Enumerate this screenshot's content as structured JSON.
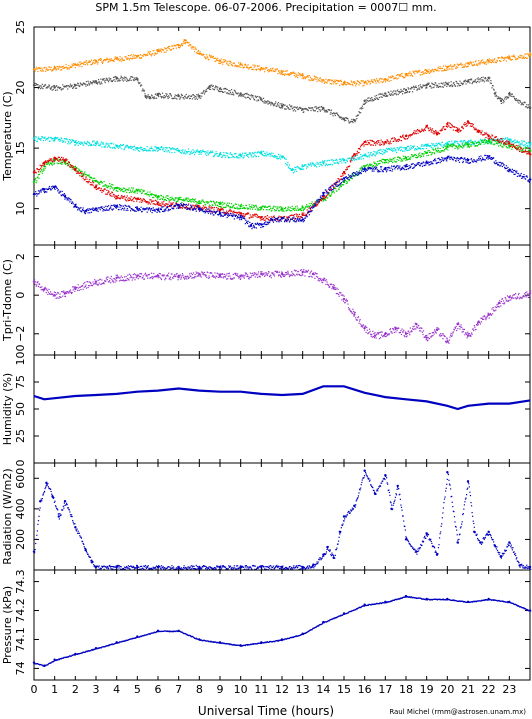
{
  "title": "SPM 1.5m Telescope. 06-07-2006. Precipitation = 0007☐ mm.",
  "xlabel": "Universal Time (hours)",
  "credit": "Raul Michel (rmm@astrosen.unam.mx)",
  "x_tick_labels": [
    "0",
    "1",
    "2",
    "3",
    "4",
    "5",
    "6",
    "7",
    "8",
    "9",
    "10",
    "11",
    "12",
    "13",
    "14",
    "15",
    "16",
    "17",
    "18",
    "19",
    "20",
    "21",
    "22",
    "23"
  ],
  "chart_data": [
    {
      "type": "scatter",
      "ylabel": "Temperature (C)",
      "xlim": [
        0,
        24
      ],
      "ylim": [
        7,
        25
      ],
      "yticks": [
        10,
        15,
        20,
        25
      ],
      "series": [
        {
          "color": "#ff8c00",
          "x": [
            0,
            1,
            2,
            3,
            4,
            5,
            6,
            7,
            7.3,
            8,
            9,
            10,
            11,
            12,
            13,
            14,
            15,
            16,
            17,
            18,
            19,
            20,
            21,
            22,
            23,
            24
          ],
          "y": [
            21.5,
            21.6,
            21.9,
            22.2,
            22.4,
            22.6,
            23.0,
            23.5,
            23.9,
            22.8,
            22.2,
            21.9,
            21.6,
            21.3,
            21.0,
            20.6,
            20.4,
            20.4,
            20.7,
            21.1,
            21.4,
            21.7,
            22.0,
            22.2,
            22.5,
            22.7
          ]
        },
        {
          "color": "#555555",
          "x": [
            0,
            1,
            2,
            3,
            4,
            5,
            5.4,
            5.6,
            6,
            7,
            8,
            8.5,
            9,
            10,
            11,
            12,
            13,
            14,
            15,
            15.5,
            16,
            17,
            18,
            19,
            20,
            21,
            22,
            22.3,
            22.6,
            23,
            24
          ],
          "y": [
            20.2,
            20.0,
            20.2,
            20.5,
            20.8,
            20.7,
            19.3,
            19.2,
            19.4,
            19.3,
            19.3,
            20.1,
            19.9,
            19.5,
            19.0,
            18.5,
            18.2,
            18.3,
            17.4,
            17.3,
            18.9,
            19.5,
            19.8,
            20.2,
            20.3,
            20.5,
            20.8,
            19.5,
            18.9,
            19.5,
            18.3
          ]
        },
        {
          "color": "#00e0e0",
          "x": [
            0,
            1,
            2,
            3,
            4,
            5,
            6,
            7,
            8,
            9,
            10,
            11,
            12,
            12.5,
            13,
            14,
            15,
            16,
            17,
            18,
            19,
            20,
            21,
            22,
            23,
            24
          ],
          "y": [
            15.8,
            15.8,
            15.5,
            15.4,
            15.2,
            15.0,
            15.0,
            14.8,
            14.7,
            14.5,
            14.4,
            14.6,
            14.3,
            13.2,
            13.5,
            13.8,
            14.0,
            14.4,
            14.8,
            15.0,
            15.2,
            15.4,
            15.5,
            15.6,
            15.7,
            15.3
          ]
        },
        {
          "color": "#00d000",
          "x": [
            0,
            0.5,
            1,
            1.5,
            2,
            3,
            4,
            5,
            6,
            7,
            8,
            9,
            10,
            11,
            12,
            13,
            14,
            15,
            16,
            17,
            18,
            19,
            20,
            21,
            22,
            23,
            24
          ],
          "y": [
            12.2,
            13.5,
            14.0,
            13.8,
            13.3,
            12.3,
            11.7,
            11.5,
            11.0,
            10.8,
            10.6,
            10.4,
            10.2,
            10.1,
            10.0,
            10.1,
            10.8,
            12.2,
            13.5,
            14.0,
            14.2,
            14.6,
            15.1,
            15.3,
            15.6,
            15.2,
            14.8
          ]
        },
        {
          "color": "#e00000",
          "x": [
            0,
            0.5,
            1,
            1.5,
            2,
            3,
            4,
            5,
            6,
            7,
            8,
            9,
            10,
            11,
            12,
            13,
            14,
            15,
            15.5,
            16,
            17,
            18,
            19,
            19.5,
            20,
            20.5,
            21,
            21.5,
            22,
            23,
            24
          ],
          "y": [
            13.0,
            13.8,
            14.2,
            14.0,
            13.2,
            11.8,
            11.0,
            10.8,
            10.5,
            10.3,
            10.1,
            9.9,
            9.6,
            9.3,
            9.2,
            9.5,
            11.0,
            13.0,
            14.5,
            15.5,
            15.5,
            16.0,
            16.8,
            16.2,
            17.0,
            16.5,
            17.2,
            16.4,
            16.0,
            15.4,
            14.5
          ]
        },
        {
          "color": "#0000c0",
          "x": [
            0,
            0.5,
            1,
            1.5,
            2,
            2.5,
            3,
            4,
            5,
            6,
            7,
            8,
            9,
            10,
            10.5,
            11,
            11.5,
            12,
            13,
            14,
            15,
            16,
            17,
            18,
            19,
            20,
            21,
            22,
            23,
            24
          ],
          "y": [
            11.2,
            11.6,
            11.8,
            11.0,
            10.2,
            9.8,
            10.0,
            10.2,
            10.0,
            9.9,
            10.3,
            10.0,
            9.6,
            9.3,
            8.6,
            8.7,
            9.1,
            9.2,
            9.1,
            11.3,
            12.5,
            13.3,
            13.3,
            13.5,
            13.8,
            14.2,
            14.0,
            14.3,
            13.2,
            12.4
          ]
        }
      ]
    },
    {
      "type": "scatter",
      "ylabel": "Tpri-Tdome (C)",
      "xlim": [
        0,
        24
      ],
      "ylim": [
        -3.1,
        2.6
      ],
      "yticks": [
        -2,
        0,
        2
      ],
      "series": [
        {
          "color": "#9933cc",
          "x": [
            0,
            0.5,
            1,
            1.5,
            2,
            3,
            4,
            5,
            6,
            7,
            8,
            9,
            10,
            11,
            12,
            13,
            13.5,
            14,
            14.5,
            15,
            15.5,
            16,
            16.5,
            17,
            17.5,
            18,
            18.5,
            19,
            19.5,
            20,
            20.5,
            21,
            21.5,
            22,
            22.5,
            23,
            24
          ],
          "y": [
            0.7,
            0.3,
            0.0,
            0.1,
            0.4,
            0.7,
            0.9,
            1.0,
            1.0,
            1.0,
            1.1,
            1.0,
            1.0,
            1.1,
            1.1,
            1.2,
            1.1,
            0.8,
            0.4,
            -0.2,
            -1.0,
            -1.7,
            -2.1,
            -2.0,
            -1.7,
            -2.0,
            -1.5,
            -2.2,
            -1.8,
            -2.4,
            -1.5,
            -2.1,
            -1.4,
            -1.0,
            -0.4,
            -0.1,
            0.1
          ]
        }
      ]
    },
    {
      "type": "line",
      "ylabel": "Humidity (%)",
      "xlim": [
        0,
        24
      ],
      "ylim": [
        0,
        100
      ],
      "yticks": [
        0,
        25,
        50,
        75,
        100
      ],
      "series": [
        {
          "color": "#0000c0",
          "x": [
            0,
            0.5,
            1,
            2,
            3,
            4,
            5,
            6,
            7,
            8,
            9,
            10,
            11,
            12,
            13,
            14,
            15,
            16,
            17,
            18,
            19,
            20,
            20.5,
            21,
            22,
            23,
            24
          ],
          "y": [
            62,
            59,
            60,
            62,
            63,
            64,
            66,
            67,
            69,
            67,
            66,
            66,
            64,
            63,
            64,
            71,
            71,
            65,
            61,
            59,
            57,
            53,
            50,
            53,
            55,
            55,
            58
          ]
        }
      ]
    },
    {
      "type": "scatter",
      "ylabel": "Radiation (W/m2)",
      "xlim": [
        0,
        24
      ],
      "ylim": [
        0,
        700
      ],
      "yticks": [
        200,
        400,
        600
      ],
      "series": [
        {
          "color": "#0000c0",
          "x": [
            0,
            0.3,
            0.6,
            0.9,
            1.2,
            1.5,
            2,
            2.5,
            2.8,
            3,
            4,
            5,
            6,
            7,
            8,
            9,
            10,
            11,
            12,
            13,
            13.5,
            14,
            14.2,
            14.5,
            14.8,
            15,
            15.5,
            16,
            16.5,
            17,
            17.3,
            17.6,
            18,
            18.5,
            19,
            19.5,
            20,
            20.5,
            21,
            21.3,
            21.6,
            22,
            22.3,
            22.6,
            23,
            23.5,
            24
          ],
          "y": [
            120,
            450,
            570,
            480,
            350,
            450,
            280,
            130,
            50,
            20,
            20,
            20,
            20,
            20,
            20,
            20,
            20,
            20,
            20,
            20,
            30,
            100,
            150,
            80,
            250,
            350,
            420,
            650,
            500,
            620,
            400,
            550,
            200,
            120,
            240,
            100,
            640,
            180,
            580,
            250,
            180,
            250,
            160,
            90,
            180,
            30,
            20
          ]
        }
      ]
    },
    {
      "type": "scatter",
      "ylabel": "Pressure (kPa)",
      "xlim": [
        0,
        24
      ],
      "ylim": [
        73.96,
        74.34
      ],
      "yticks": [
        74.0,
        74.1,
        74.2,
        74.3
      ],
      "series": [
        {
          "color": "#0000c0",
          "x": [
            0,
            0.5,
            1,
            2,
            3,
            4,
            5,
            6,
            7,
            8,
            9,
            10,
            11,
            12,
            13,
            14,
            15,
            16,
            17,
            18,
            19,
            20,
            21,
            22,
            23,
            24
          ],
          "y": [
            74.02,
            74.01,
            74.03,
            74.05,
            74.07,
            74.09,
            74.11,
            74.13,
            74.13,
            74.1,
            74.09,
            74.08,
            74.09,
            74.1,
            74.12,
            74.16,
            74.19,
            74.22,
            74.23,
            74.25,
            74.24,
            74.24,
            74.23,
            74.24,
            74.23,
            74.2
          ]
        }
      ]
    }
  ]
}
